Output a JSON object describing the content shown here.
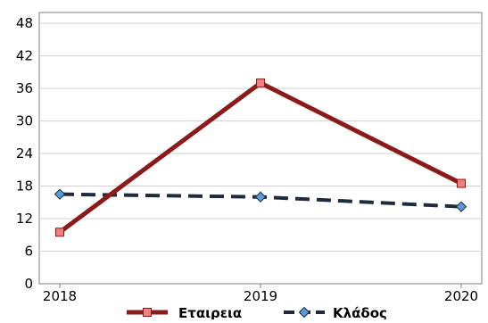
{
  "chart_data": {
    "type": "line",
    "title": "",
    "xlabel": "",
    "ylabel": "",
    "categories": [
      "2018",
      "2019",
      "2020"
    ],
    "ylim": [
      0,
      50
    ],
    "yticks": [
      0,
      6,
      12,
      18,
      24,
      30,
      36,
      42,
      48
    ],
    "grid": "horizontal",
    "legend_position": "bottom",
    "series": [
      {
        "name": "Εταιρεια",
        "values": [
          9.5,
          37,
          18.5
        ],
        "color": "#8b1a1a",
        "marker_color": "#f08080",
        "marker": "square",
        "line_style": "solid"
      },
      {
        "name": "Κλάδος",
        "values": [
          16.5,
          16,
          14.2
        ],
        "color": "#1f2a3a",
        "marker_color": "#5b9bd5",
        "marker": "diamond",
        "line_style": "dashed"
      }
    ]
  }
}
